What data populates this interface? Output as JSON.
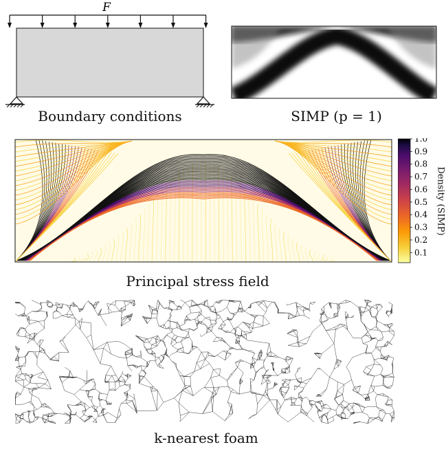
{
  "panels": {
    "boundary": {
      "force_label": "F",
      "caption": "Boundary conditions"
    },
    "simp": {
      "caption": "SIMP (p = 1)"
    },
    "stress": {
      "caption": "Principal stress field",
      "colorbar": {
        "label": "Density (SIMP)",
        "ticks": [
          "1.0",
          "0.9",
          "0.8",
          "0.7",
          "0.6",
          "0.5",
          "0.4",
          "0.3",
          "0.2",
          "0.1"
        ],
        "colormap": [
          "#fcffa4",
          "#f7d13d",
          "#fb9b06",
          "#ed6925",
          "#cf4446",
          "#a52c60",
          "#781c6d",
          "#4a0c6b",
          "#1b0c41",
          "#000004"
        ]
      }
    },
    "foam": {
      "caption": "k-nearest foam"
    }
  },
  "colors": {
    "beam_fill": "#d8d8d8",
    "line": "#111111"
  }
}
